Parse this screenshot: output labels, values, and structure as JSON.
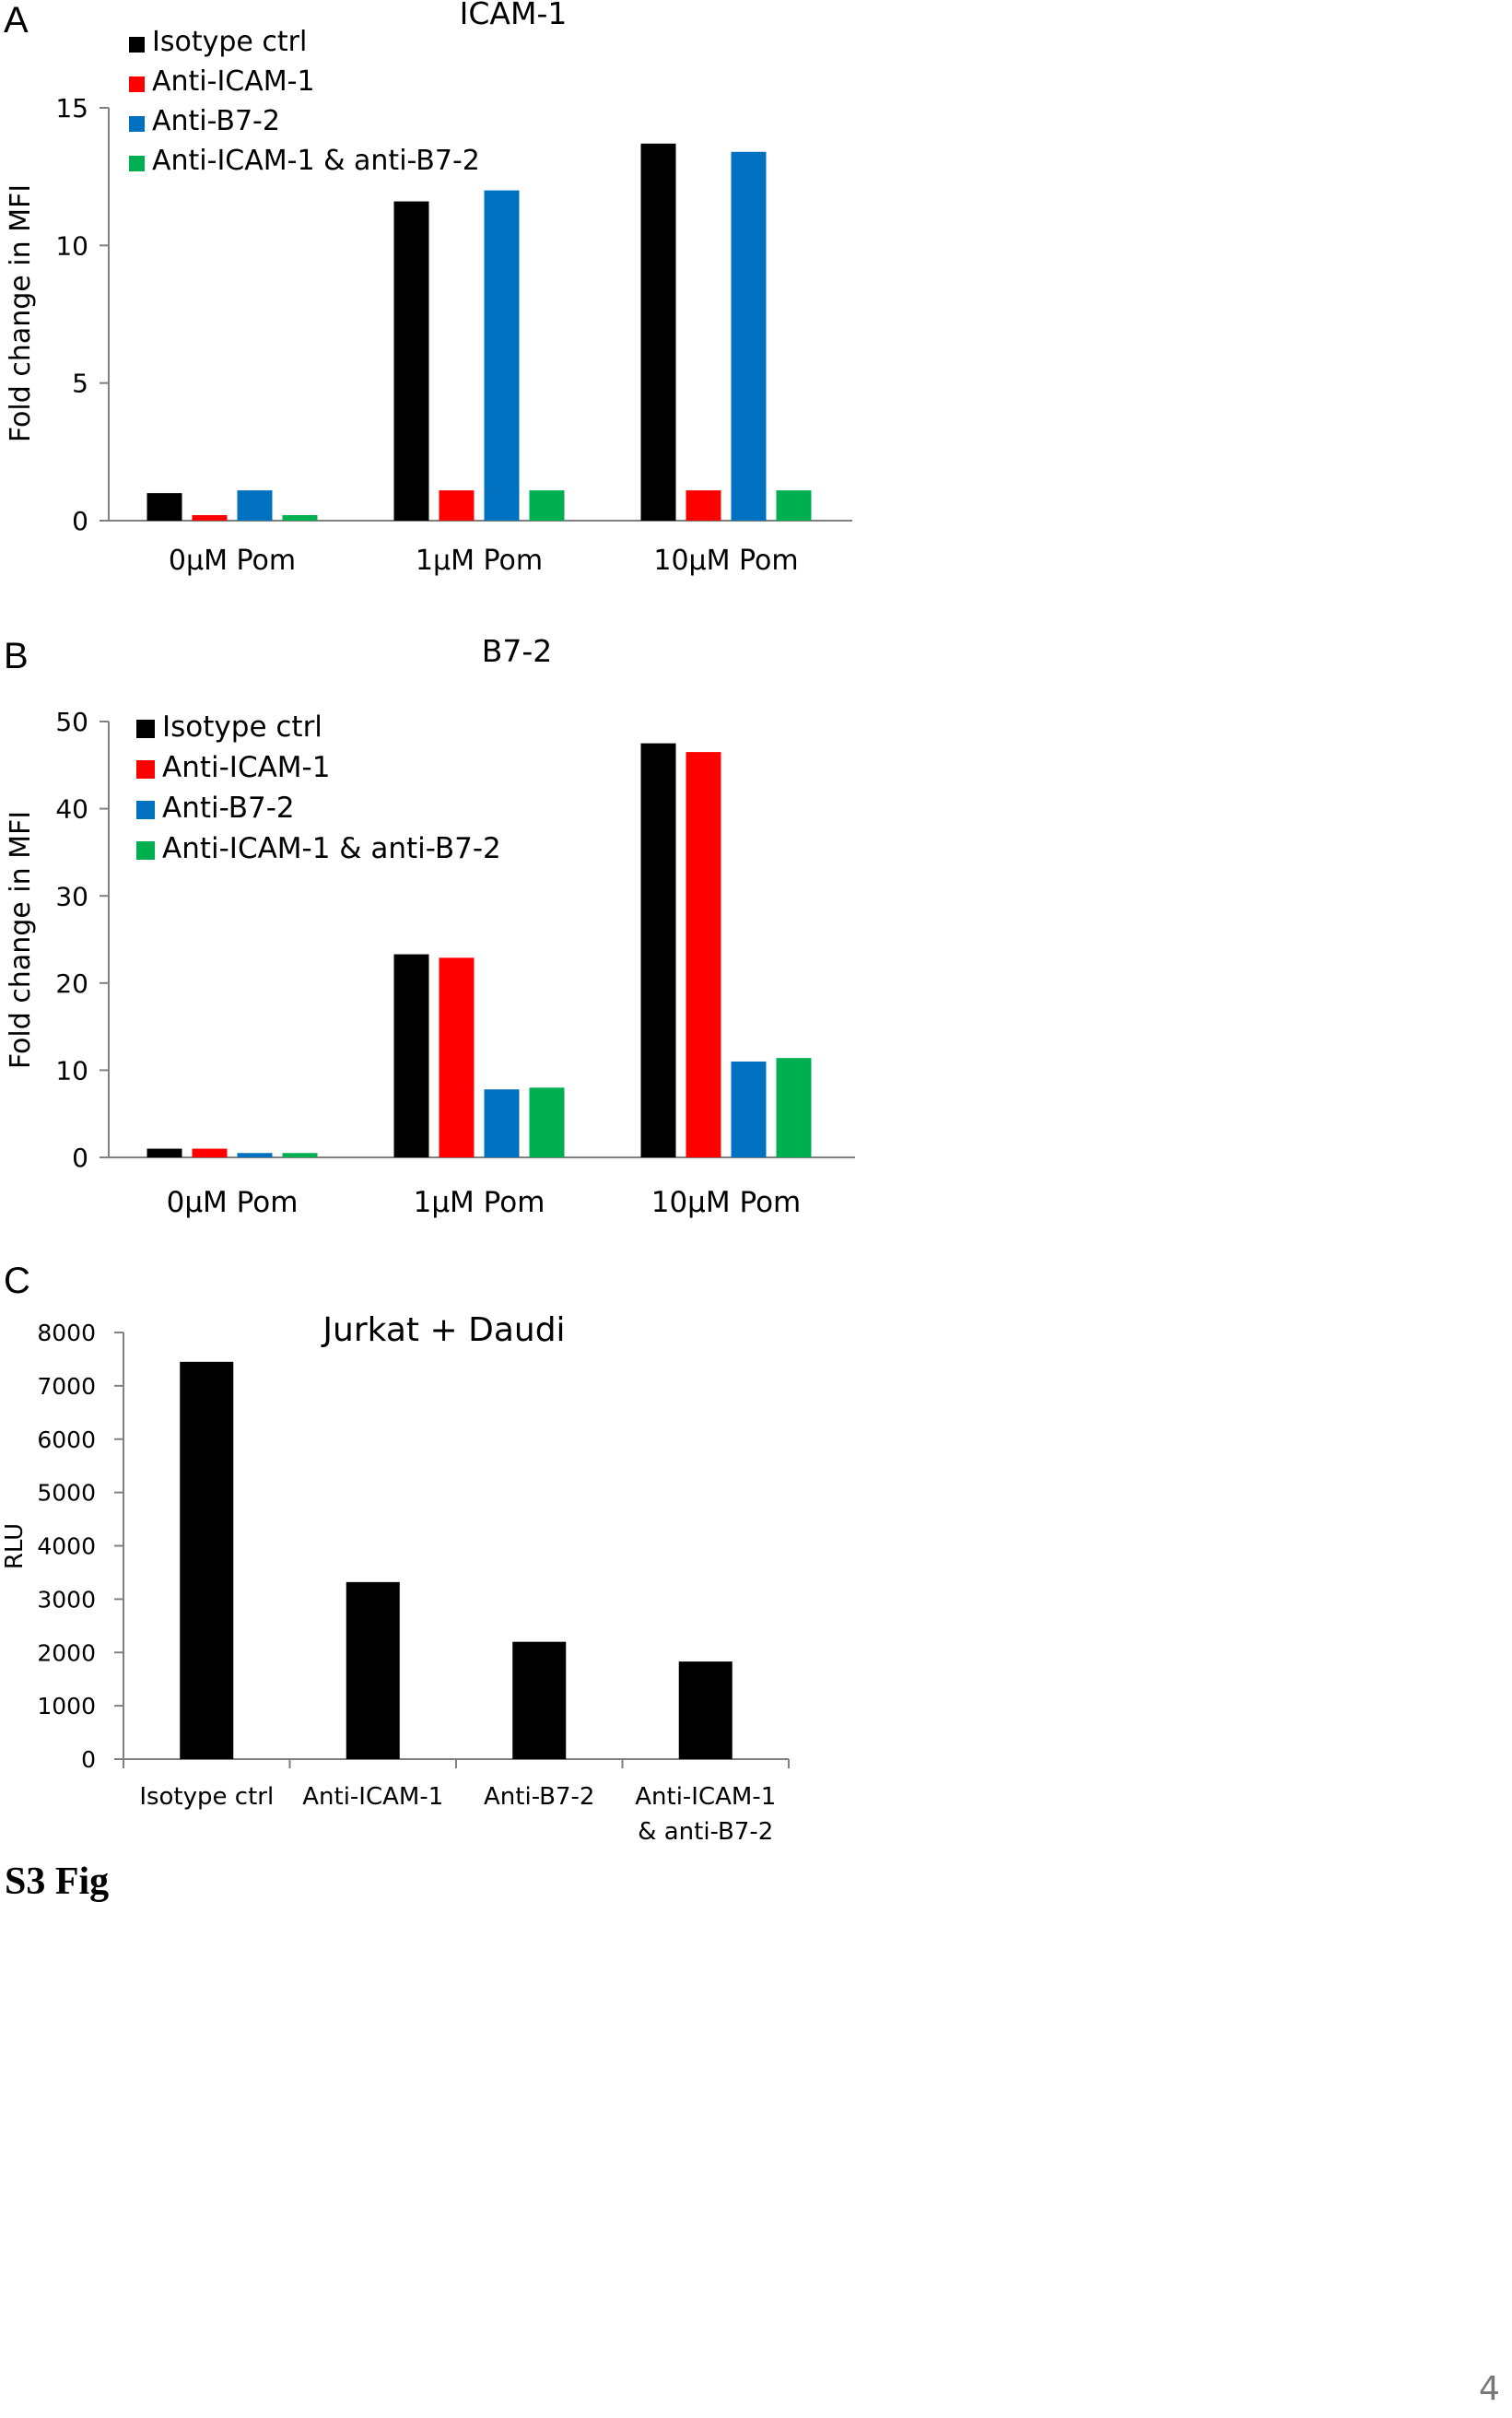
{
  "panels": {
    "a": {
      "letter": "A"
    },
    "b": {
      "letter": "B"
    },
    "c": {
      "letter": "C"
    }
  },
  "figure_label": "S3 Fig",
  "page_number": "4",
  "colors": {
    "isotype": "#000000",
    "anti_icam1": "#ff0000",
    "anti_b72": "#0070c0",
    "combo": "#00b050"
  },
  "chart_data": [
    {
      "id": "a",
      "type": "bar",
      "title": "ICAM-1",
      "xlabel": "",
      "ylabel": "Fold change in MFI",
      "ylim": [
        0,
        15
      ],
      "yticks": [
        "0",
        "5",
        "10",
        "15"
      ],
      "categories": [
        "0μM Pom",
        "1μM Pom",
        "10μM Pom"
      ],
      "legend_position": "top-left",
      "series": [
        {
          "name": "Isotype ctrl",
          "color": "#000000",
          "values": [
            1.0,
            11.6,
            13.7
          ]
        },
        {
          "name": "Anti-ICAM-1",
          "color": "#ff0000",
          "values": [
            0.2,
            1.1,
            1.1
          ]
        },
        {
          "name": "Anti-B7-2",
          "color": "#0070c0",
          "values": [
            1.1,
            12.0,
            13.4
          ]
        },
        {
          "name": "Anti-ICAM-1 & anti-B7-2",
          "color": "#00b050",
          "values": [
            0.2,
            1.1,
            1.1
          ]
        }
      ]
    },
    {
      "id": "b",
      "type": "bar",
      "title": "B7-2",
      "xlabel": "",
      "ylabel": "Fold change in MFI",
      "ylim": [
        0,
        50
      ],
      "yticks": [
        "0",
        "10",
        "20",
        "30",
        "40",
        "50"
      ],
      "categories": [
        "0μM Pom",
        "1μM Pom",
        "10μM Pom"
      ],
      "legend_position": "top-left",
      "series": [
        {
          "name": "Isotype ctrl",
          "color": "#000000",
          "values": [
            1.0,
            23.3,
            47.5
          ]
        },
        {
          "name": "Anti-ICAM-1",
          "color": "#ff0000",
          "values": [
            1.0,
            22.9,
            46.5
          ]
        },
        {
          "name": "Anti-B7-2",
          "color": "#0070c0",
          "values": [
            0.5,
            7.8,
            11.0
          ]
        },
        {
          "name": "Anti-ICAM-1 & anti-B7-2",
          "color": "#00b050",
          "values": [
            0.5,
            8.0,
            11.4
          ]
        }
      ]
    },
    {
      "id": "c",
      "type": "bar",
      "title": "Jurkat + Daudi",
      "xlabel": "",
      "ylabel": "RLU",
      "ylim": [
        0,
        8000
      ],
      "yticks": [
        "0",
        "1000",
        "2000",
        "3000",
        "4000",
        "5000",
        "6000",
        "7000",
        "8000"
      ],
      "categories": [
        "Isotype ctrl",
        "Anti-ICAM-1",
        "Anti-B7-2",
        "Anti-ICAM-1 & anti-B7-2"
      ],
      "category_lines": [
        [
          "Isotype ctrl"
        ],
        [
          "Anti-ICAM-1"
        ],
        [
          "Anti-B7-2"
        ],
        [
          "Anti-ICAM-1",
          "& anti-B7-2"
        ]
      ],
      "legend_position": "none",
      "series": [
        {
          "name": "",
          "color": "#000000",
          "values": [
            7450,
            3320,
            2200,
            1830
          ]
        }
      ]
    }
  ]
}
